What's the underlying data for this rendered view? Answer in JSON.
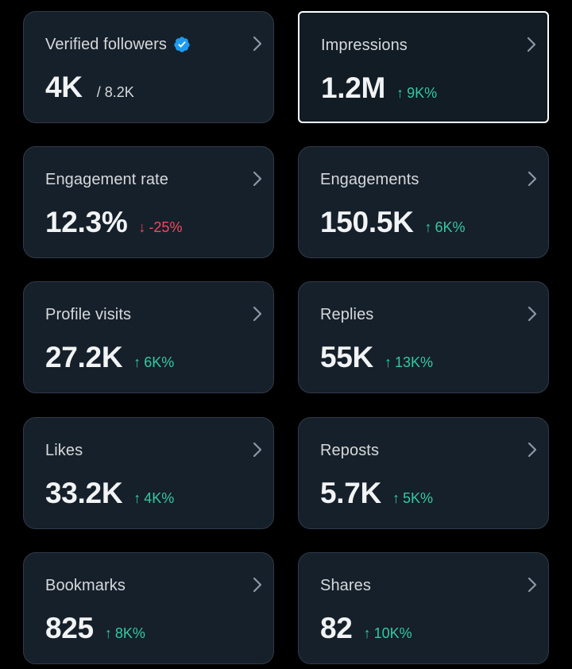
{
  "colors": {
    "up": "#33c8a0",
    "down": "#f4475f",
    "verified": "#1d9bf0"
  },
  "cards": [
    {
      "label": "Verified followers",
      "value": "4K",
      "secondary": "/ 8.2K",
      "icon": "verified-badge-icon"
    },
    {
      "label": "Impressions",
      "value": "1.2M",
      "change": "9K%",
      "direction": "up"
    },
    {
      "label": "Engagement rate",
      "value": "12.3%",
      "change": "-25%",
      "direction": "down"
    },
    {
      "label": "Engagements",
      "value": "150.5K",
      "change": "6K%",
      "direction": "up"
    },
    {
      "label": "Profile visits",
      "value": "27.2K",
      "change": "6K%",
      "direction": "up"
    },
    {
      "label": "Replies",
      "value": "55K",
      "change": "13K%",
      "direction": "up"
    },
    {
      "label": "Likes",
      "value": "33.2K",
      "change": "4K%",
      "direction": "up"
    },
    {
      "label": "Reposts",
      "value": "5.7K",
      "change": "5K%",
      "direction": "up"
    },
    {
      "label": "Bookmarks",
      "value": "825",
      "change": "8K%",
      "direction": "up"
    },
    {
      "label": "Shares",
      "value": "82",
      "change": "10K%",
      "direction": "up"
    }
  ],
  "arrows": {
    "up": "↑",
    "down": "↓"
  }
}
